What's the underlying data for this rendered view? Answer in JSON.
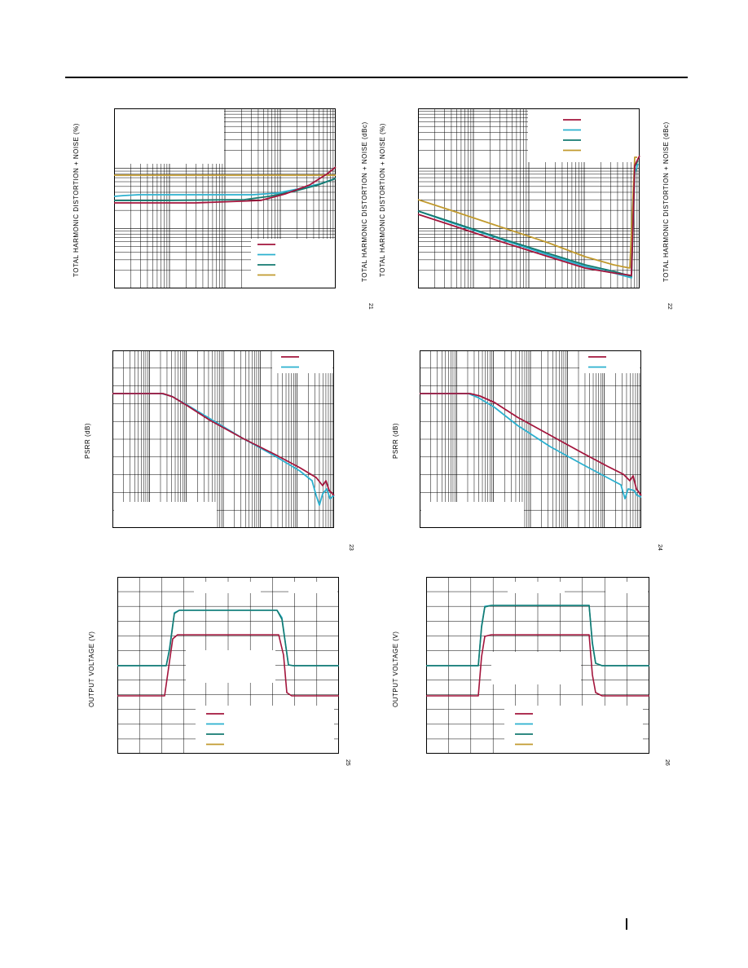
{
  "header": {
    "rule": true
  },
  "colors": {
    "red": "#a3153c",
    "cyan": "#2bb0cf",
    "teal": "#137a70",
    "gold": "#c19a2e"
  },
  "charts": [
    {
      "id": "thdn-vs-frequency",
      "ylabel": "TOTAL HARMONIC DISTORTION + NOISE (%)",
      "figure_number": "21",
      "legend_colors": [
        "#a3153c",
        "#2bb0cf",
        "#137a70",
        "#c19a2e"
      ]
    },
    {
      "id": "thdn-vs-amplitude",
      "ylabel_left_1": "TOTAL HARMONIC DISTORTION + NOISE (dBc)",
      "ylabel_left_2": "TOTAL HARMONIC DISTORTION + NOISE (%)",
      "ylabel_right": "TOTAL HARMONIC DISTORTION + NOISE (dBc)",
      "figure_number": "22",
      "legend_colors": [
        "#a3153c",
        "#2bb0cf",
        "#137a70",
        "#c19a2e"
      ]
    },
    {
      "id": "psrr-left",
      "ylabel": "PSRR (dB)",
      "figure_number": "23",
      "legend_colors": [
        "#a3153c",
        "#2bb0cf"
      ]
    },
    {
      "id": "psrr-right",
      "ylabel": "PSRR (dB)",
      "figure_number": "24",
      "legend_colors": [
        "#a3153c",
        "#2bb0cf"
      ]
    },
    {
      "id": "pulse-left",
      "ylabel": "OUTPUT VOLTAGE (V)",
      "figure_number": "25",
      "legend_colors": [
        "#a3153c",
        "#2bb0cf",
        "#137a70",
        "#c19a2e"
      ]
    },
    {
      "id": "pulse-right",
      "ylabel": "OUTPUT VOLTAGE (V)",
      "figure_number": "26",
      "legend_colors": [
        "#a3153c",
        "#2bb0cf",
        "#137a70",
        "#c19a2e"
      ]
    }
  ]
}
